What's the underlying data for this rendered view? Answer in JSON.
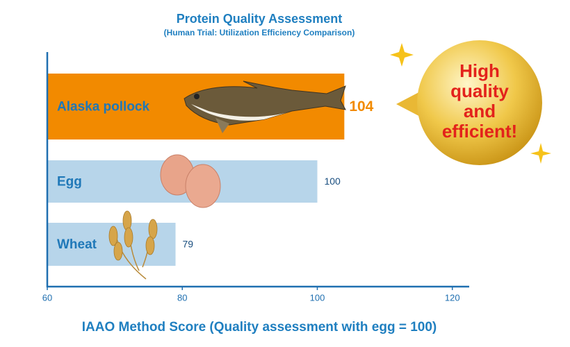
{
  "chart_data": {
    "type": "bar",
    "orientation": "horizontal",
    "title": "Protein Quality Assessment",
    "subtitle": "(Human Trial: Utilization Efficiency Comparison)",
    "x_label": "IAAO Method Score (Quality assessment with egg = 100)",
    "categories": [
      "Alaska pollock",
      "Egg",
      "Wheat"
    ],
    "values": [
      104,
      100,
      79
    ],
    "colors": [
      "#f28a00",
      "#b7d5ea",
      "#b7d5ea"
    ],
    "xlim": [
      60,
      122.5
    ],
    "xticks": [
      60,
      80,
      100,
      120
    ],
    "annotation": [
      "High",
      "quality",
      "and",
      "efficient!"
    ]
  }
}
